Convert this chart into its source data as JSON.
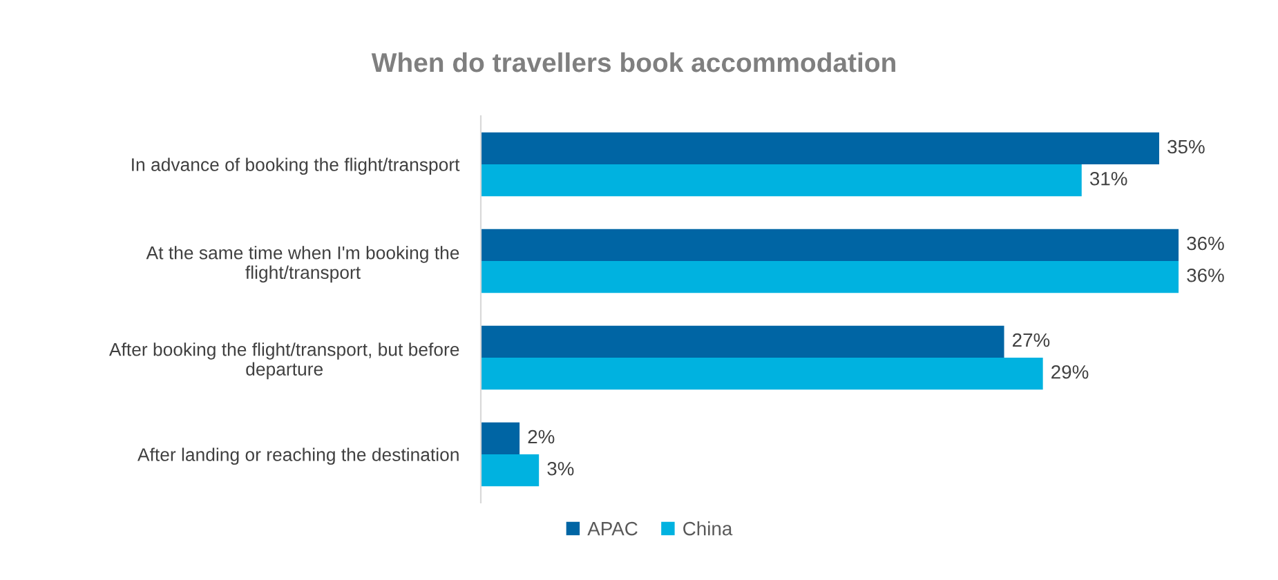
{
  "chart_data": {
    "type": "bar",
    "orientation": "horizontal",
    "title": "When do travellers book accommodation",
    "categories": [
      "In advance of booking the flight/transport",
      "At the same time when I'm booking the\nflight/transport",
      "After booking the flight/transport, but before\ndeparture",
      "After landing or reaching the destination"
    ],
    "series": [
      {
        "name": "APAC",
        "color": "#0065a4",
        "values": [
          35,
          36,
          27,
          2
        ],
        "value_labels": [
          "35%",
          "36%",
          "27%",
          "2%"
        ]
      },
      {
        "name": "China",
        "color": "#00b2e0",
        "values": [
          31,
          36,
          29,
          3
        ],
        "value_labels": [
          "31%",
          "36%",
          "29%",
          "3%"
        ]
      }
    ],
    "legend": "bottom"
  }
}
